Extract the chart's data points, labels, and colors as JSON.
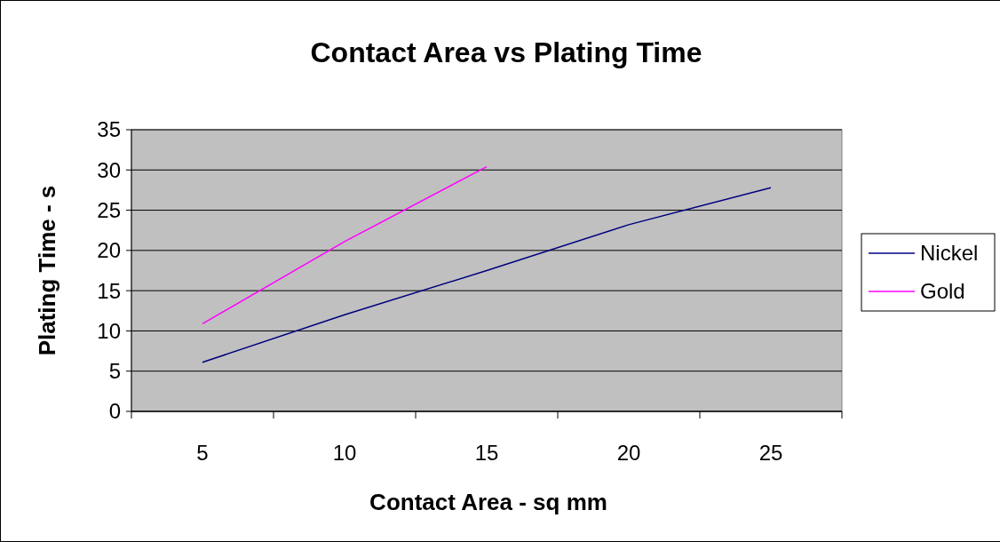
{
  "chart_data": {
    "type": "line",
    "title": "Contact Area vs Plating Time",
    "xlabel": "Contact Area - sq mm",
    "ylabel": "Plating Time - s",
    "categories": [
      "5",
      "10",
      "15",
      "20",
      "25"
    ],
    "series": [
      {
        "name": "Nickel",
        "color": "#000080",
        "values": [
          6.1,
          12,
          17.5,
          23.2,
          27.8
        ]
      },
      {
        "name": "Gold",
        "color": "#ff00ff",
        "values": [
          10.9,
          21.1,
          30.4,
          null,
          null
        ]
      }
    ],
    "ylim": [
      0,
      35
    ],
    "yticks": [
      0,
      5,
      10,
      15,
      20,
      25,
      30,
      35
    ],
    "grid": "y",
    "legend": "right"
  }
}
